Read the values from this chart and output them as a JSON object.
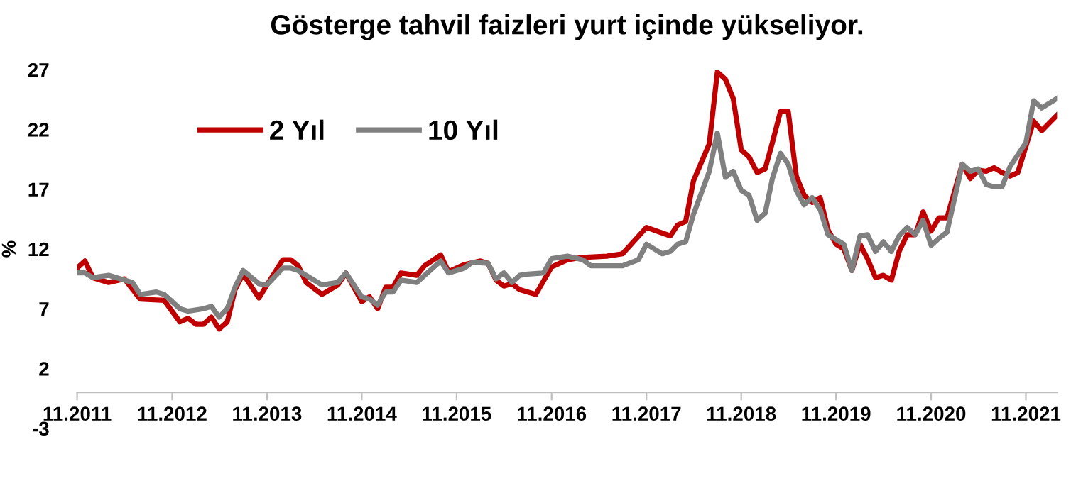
{
  "chart_data": {
    "type": "line",
    "title": "Gösterge tahvil faizleri yurt içinde yükseliyor.",
    "ylabel": "%",
    "ylim": [
      -3,
      27
    ],
    "yticks": [
      -3,
      2,
      7,
      12,
      17,
      22,
      27
    ],
    "xlim": [
      "2011-11",
      "2022-03"
    ],
    "xticks": [
      {
        "value": "2011-11",
        "label": "11.2011"
      },
      {
        "value": "2012-11",
        "label": "11.2012"
      },
      {
        "value": "2013-11",
        "label": "11.2013"
      },
      {
        "value": "2014-11",
        "label": "11.2014"
      },
      {
        "value": "2015-11",
        "label": "11.2015"
      },
      {
        "value": "2016-11",
        "label": "11.2016"
      },
      {
        "value": "2017-11",
        "label": "11.2017"
      },
      {
        "value": "2018-11",
        "label": "11.2018"
      },
      {
        "value": "2019-11",
        "label": "11.2019"
      },
      {
        "value": "2020-11",
        "label": "11.2020"
      },
      {
        "value": "2021-11",
        "label": "11.2021"
      }
    ],
    "grid": false,
    "legend": "top left",
    "line_style": "solid",
    "marker": "none",
    "series": [
      {
        "name": "2 Yıl",
        "color": "#c00000",
        "x": [
          "2011-11",
          "2011-12",
          "2012-01",
          "2012-03",
          "2012-05",
          "2012-07",
          "2012-10",
          "2012-12",
          "2013-01",
          "2013-02",
          "2013-03",
          "2013-04",
          "2013-05",
          "2013-06",
          "2013-07",
          "2013-08",
          "2013-10",
          "2013-11",
          "2014-01",
          "2014-02",
          "2014-03",
          "2014-04",
          "2014-06",
          "2014-08",
          "2014-09",
          "2014-11",
          "2014-12",
          "2015-01",
          "2015-02",
          "2015-03",
          "2015-04",
          "2015-06",
          "2015-07",
          "2015-09",
          "2015-10",
          "2015-12",
          "2016-02",
          "2016-03",
          "2016-04",
          "2016-05",
          "2016-06",
          "2016-07",
          "2016-09",
          "2016-11",
          "2017-01",
          "2017-03",
          "2017-06",
          "2017-08",
          "2017-11",
          "2018-02",
          "2018-03",
          "2018-04",
          "2018-05",
          "2018-07",
          "2018-08",
          "2018-09",
          "2018-10",
          "2018-11",
          "2018-12",
          "2019-01",
          "2019-02",
          "2019-03",
          "2019-04",
          "2019-05",
          "2019-06",
          "2019-07",
          "2019-08",
          "2019-09",
          "2019-10",
          "2019-11",
          "2019-12",
          "2020-01",
          "2020-02",
          "2020-03",
          "2020-04",
          "2020-05",
          "2020-06",
          "2020-07",
          "2020-08",
          "2020-09",
          "2020-10",
          "2020-11",
          "2020-12",
          "2021-01",
          "2021-03",
          "2021-04",
          "2021-05",
          "2021-06",
          "2021-07",
          "2021-08",
          "2021-09",
          "2021-10",
          "2021-12",
          "2022-01",
          "2022-03"
        ],
        "values": [
          10.4,
          11.0,
          9.6,
          9.2,
          9.5,
          7.8,
          7.7,
          5.9,
          6.2,
          5.7,
          5.7,
          6.3,
          5.3,
          5.9,
          8.6,
          9.9,
          7.9,
          9.0,
          11.1,
          11.1,
          10.6,
          9.2,
          8.2,
          9.0,
          10.0,
          7.6,
          8.0,
          7.0,
          8.8,
          8.8,
          10.0,
          9.8,
          10.6,
          11.5,
          10.1,
          10.7,
          11.0,
          10.8,
          9.4,
          8.9,
          9.1,
          8.6,
          8.2,
          10.5,
          11.1,
          11.3,
          11.4,
          11.6,
          13.8,
          13.1,
          14.0,
          14.3,
          17.7,
          20.8,
          26.8,
          26.2,
          24.6,
          20.3,
          19.7,
          18.4,
          18.7,
          20.9,
          23.5,
          23.5,
          18.1,
          16.5,
          15.9,
          16.3,
          13.6,
          12.4,
          12.0,
          10.2,
          12.4,
          11.2,
          9.6,
          9.8,
          9.4,
          11.8,
          13.2,
          13.2,
          15.1,
          13.5,
          14.6,
          14.6,
          19.1,
          17.9,
          18.6,
          18.5,
          18.8,
          18.4,
          18.1,
          18.4,
          22.7,
          21.9,
          23.2
        ]
      },
      {
        "name": "10 Yıl",
        "color": "#808080",
        "x": [
          "2011-11",
          "2011-12",
          "2012-01",
          "2012-03",
          "2012-05",
          "2012-06",
          "2012-07",
          "2012-09",
          "2012-10",
          "2012-12",
          "2013-01",
          "2013-03",
          "2013-04",
          "2013-05",
          "2013-06",
          "2013-07",
          "2013-08",
          "2013-10",
          "2013-11",
          "2014-01",
          "2014-02",
          "2014-03",
          "2014-05",
          "2014-06",
          "2014-08",
          "2014-09",
          "2014-11",
          "2014-12",
          "2015-01",
          "2015-02",
          "2015-03",
          "2015-04",
          "2015-06",
          "2015-07",
          "2015-09",
          "2015-10",
          "2015-12",
          "2016-01",
          "2016-03",
          "2016-04",
          "2016-05",
          "2016-06",
          "2016-07",
          "2016-08",
          "2016-10",
          "2016-11",
          "2017-01",
          "2017-03",
          "2017-04",
          "2017-06",
          "2017-08",
          "2017-10",
          "2017-11",
          "2018-01",
          "2018-02",
          "2018-03",
          "2018-04",
          "2018-05",
          "2018-07",
          "2018-08",
          "2018-09",
          "2018-10",
          "2018-11",
          "2018-12",
          "2019-01",
          "2019-02",
          "2019-03",
          "2019-04",
          "2019-05",
          "2019-06",
          "2019-07",
          "2019-08",
          "2019-09",
          "2019-10",
          "2019-11",
          "2019-12",
          "2020-01",
          "2020-02",
          "2020-03",
          "2020-04",
          "2020-05",
          "2020-06",
          "2020-07",
          "2020-08",
          "2020-09",
          "2020-10",
          "2020-11",
          "2020-12",
          "2021-01",
          "2021-03",
          "2021-04",
          "2021-05",
          "2021-06",
          "2021-07",
          "2021-08",
          "2021-09",
          "2021-11",
          "2021-12",
          "2022-01",
          "2022-03"
        ],
        "values": [
          10.0,
          10.0,
          9.6,
          9.8,
          9.4,
          9.2,
          8.2,
          8.4,
          8.2,
          7.0,
          6.8,
          7.0,
          7.2,
          6.3,
          7.0,
          8.8,
          10.2,
          9.1,
          9.0,
          10.4,
          10.4,
          10.2,
          9.4,
          9.0,
          9.2,
          10.0,
          8.0,
          7.8,
          7.3,
          8.4,
          8.4,
          9.4,
          9.2,
          9.8,
          11.0,
          10.0,
          10.4,
          10.9,
          10.8,
          9.5,
          10.0,
          9.2,
          9.8,
          9.9,
          10.0,
          11.2,
          11.4,
          11.1,
          10.6,
          10.6,
          10.6,
          11.1,
          12.4,
          11.6,
          11.8,
          12.4,
          12.6,
          14.9,
          18.5,
          21.7,
          18.0,
          18.5,
          16.9,
          16.5,
          14.4,
          15.0,
          17.9,
          20.0,
          19.1,
          16.9,
          15.7,
          16.3,
          15.3,
          13.2,
          12.8,
          12.4,
          10.2,
          13.1,
          13.2,
          11.8,
          12.6,
          11.8,
          13.1,
          13.8,
          13.2,
          14.4,
          12.3,
          12.9,
          13.4,
          19.1,
          18.5,
          18.7,
          17.4,
          17.2,
          17.2,
          18.9,
          20.9,
          24.4,
          23.8,
          24.6
        ]
      }
    ]
  }
}
